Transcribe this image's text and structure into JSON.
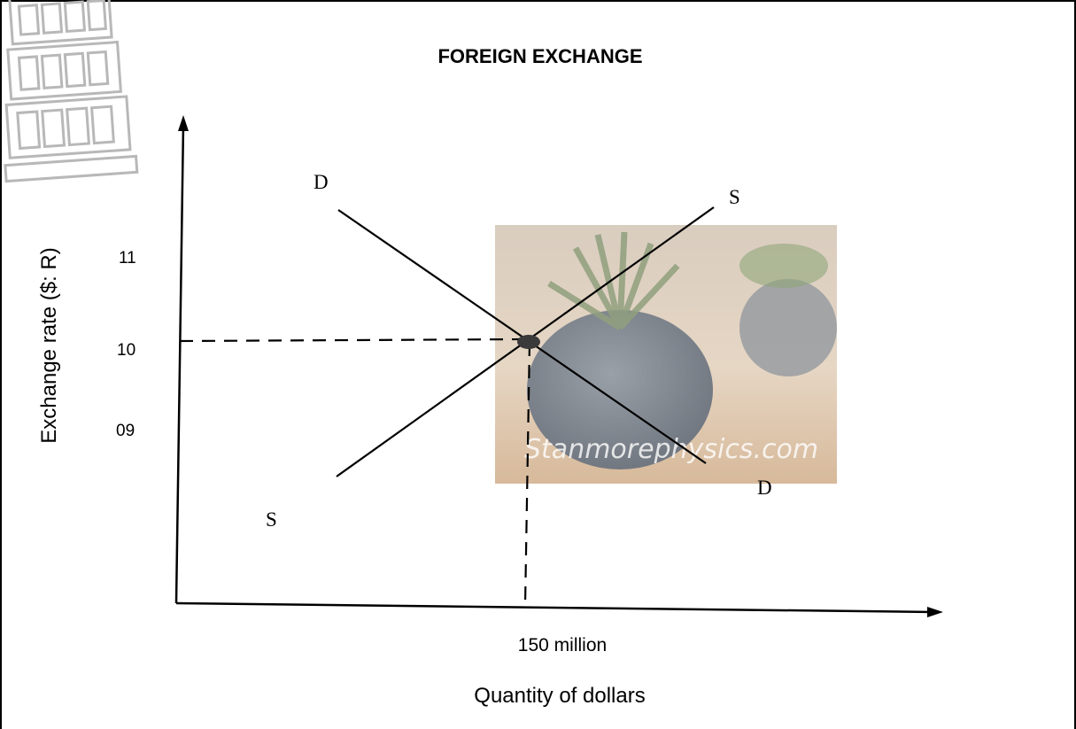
{
  "chart_data": {
    "type": "line",
    "title": "FOREIGN EXCHANGE",
    "xlabel": "Quantity of dollars",
    "ylabel": "Exchange rate ($: R)",
    "y_ticks": [
      "11",
      "10",
      "09"
    ],
    "x_ticks": [
      "150 million"
    ],
    "ylim": [
      8,
      12
    ],
    "equilibrium": {
      "x_label": "150 million",
      "y": 10
    },
    "series": [
      {
        "name": "D",
        "start_label": "D",
        "end_label": "D"
      },
      {
        "name": "S",
        "start_label": "S",
        "end_label": "S"
      }
    ],
    "grid": false,
    "colors": {
      "lines": "#000000",
      "equilibrium_point": "#3a3a3a"
    }
  },
  "watermark": {
    "text": "Stanmorephysics.com",
    "icon": "plant-pot-photo"
  },
  "logo": {
    "icon": "leaning-tower-icon"
  }
}
